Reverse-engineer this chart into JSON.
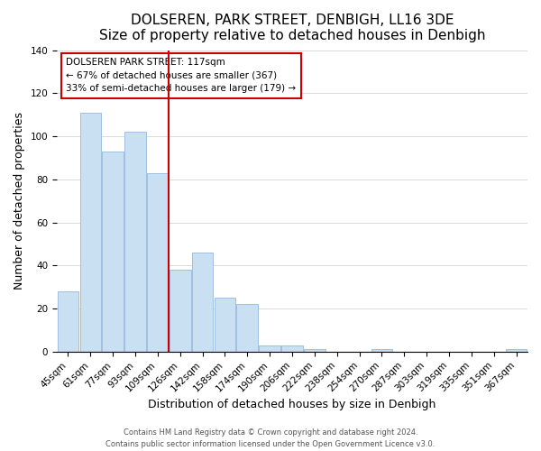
{
  "title": "DOLSEREN, PARK STREET, DENBIGH, LL16 3DE",
  "subtitle": "Size of property relative to detached houses in Denbigh",
  "xlabel": "Distribution of detached houses by size in Denbigh",
  "ylabel": "Number of detached properties",
  "bar_labels": [
    "45sqm",
    "61sqm",
    "77sqm",
    "93sqm",
    "109sqm",
    "126sqm",
    "142sqm",
    "158sqm",
    "174sqm",
    "190sqm",
    "206sqm",
    "222sqm",
    "238sqm",
    "254sqm",
    "270sqm",
    "287sqm",
    "303sqm",
    "319sqm",
    "335sqm",
    "351sqm",
    "367sqm"
  ],
  "bar_values": [
    28,
    111,
    93,
    102,
    83,
    38,
    46,
    25,
    22,
    3,
    3,
    1,
    0,
    0,
    1,
    0,
    0,
    0,
    0,
    0,
    1
  ],
  "bar_color": "#c9dff2",
  "bar_edge_color": "#a0c0e0",
  "annotation_title": "DOLSEREN PARK STREET: 117sqm",
  "annotation_line1": "← 67% of detached houses are smaller (367)",
  "annotation_line2": "33% of semi-detached houses are larger (179) →",
  "ylim": [
    0,
    140
  ],
  "yticks": [
    0,
    20,
    40,
    60,
    80,
    100,
    120,
    140
  ],
  "footer_line1": "Contains HM Land Registry data © Crown copyright and database right 2024.",
  "footer_line2": "Contains public sector information licensed under the Open Government Licence v3.0.",
  "title_fontsize": 11,
  "axis_label_fontsize": 9,
  "tick_fontsize": 7.5,
  "annotation_box_color": "#ffffff",
  "annotation_box_edge": "#cc0000",
  "ref_line_color": "#cc0000",
  "ref_line_x": 4.5
}
